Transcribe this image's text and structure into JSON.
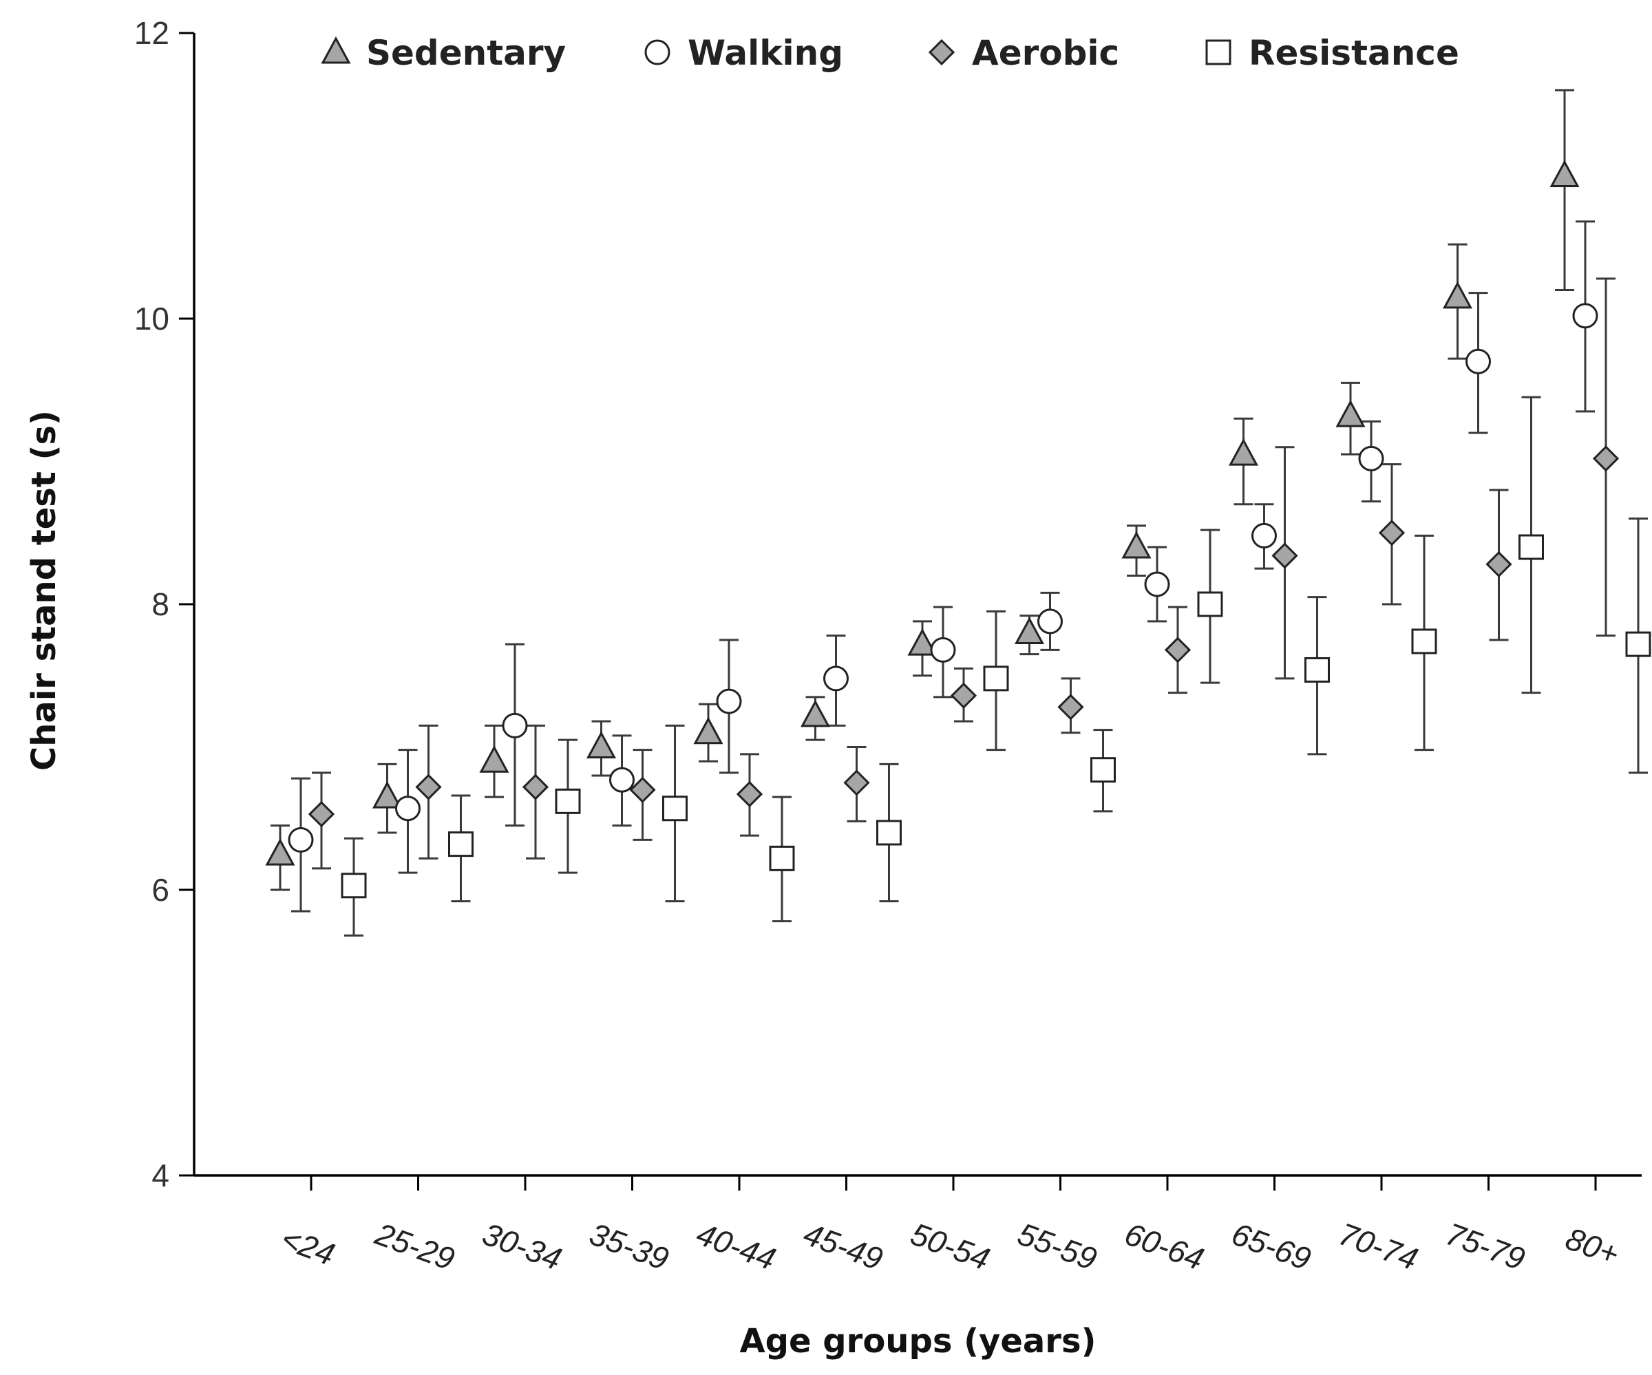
{
  "chart_data": {
    "type": "scatter",
    "xlabel": "Age groups (years)",
    "ylabel": "Chair stand test (s)",
    "ylim": [
      4,
      12
    ],
    "yticks": [
      4,
      6,
      8,
      10,
      12
    ],
    "legend_position": "top",
    "categories": [
      "<24",
      "25-29",
      "30-34",
      "35-39",
      "40-44",
      "45-49",
      "50-54",
      "55-59",
      "60-64",
      "65-69",
      "70-74",
      "75-79",
      "80+"
    ],
    "series": [
      {
        "name": "Sedentary",
        "marker": "triangle",
        "color": "#a6a6a6",
        "values": [
          6.25,
          6.65,
          6.9,
          7.0,
          7.1,
          7.22,
          7.72,
          7.8,
          8.4,
          9.05,
          9.32,
          10.15,
          11.0
        ],
        "err_low": [
          6.0,
          6.4,
          6.65,
          6.8,
          6.9,
          7.05,
          7.5,
          7.65,
          8.2,
          8.7,
          9.05,
          9.72,
          10.2
        ],
        "err_high": [
          6.45,
          6.88,
          7.15,
          7.18,
          7.3,
          7.35,
          7.88,
          7.92,
          8.55,
          9.3,
          9.55,
          10.52,
          11.6
        ]
      },
      {
        "name": "Walking",
        "marker": "circle",
        "color": "#ffffff",
        "values": [
          6.35,
          6.57,
          7.15,
          6.77,
          7.32,
          7.48,
          7.68,
          7.88,
          8.14,
          8.48,
          9.02,
          9.7,
          10.02
        ],
        "err_low": [
          5.85,
          6.12,
          6.45,
          6.45,
          6.82,
          7.15,
          7.35,
          7.68,
          7.88,
          8.25,
          8.72,
          9.2,
          9.35
        ],
        "err_high": [
          6.78,
          6.98,
          7.72,
          7.08,
          7.75,
          7.78,
          7.98,
          8.08,
          8.4,
          8.7,
          9.28,
          10.18,
          10.68
        ]
      },
      {
        "name": "Aerobic",
        "marker": "diamond",
        "color": "#a6a6a6",
        "values": [
          6.53,
          6.72,
          6.72,
          6.7,
          6.67,
          6.75,
          7.36,
          7.28,
          7.68,
          8.34,
          8.5,
          8.28,
          9.02
        ],
        "err_low": [
          6.15,
          6.22,
          6.22,
          6.35,
          6.38,
          6.48,
          7.18,
          7.1,
          7.38,
          7.48,
          8.0,
          7.75,
          7.78
        ],
        "err_high": [
          6.82,
          7.15,
          7.15,
          6.98,
          6.95,
          7.0,
          7.55,
          7.48,
          7.98,
          9.1,
          8.98,
          8.8,
          10.28
        ]
      },
      {
        "name": "Resistance",
        "marker": "square",
        "color": "#ffffff",
        "values": [
          6.03,
          6.32,
          6.62,
          6.57,
          6.22,
          6.4,
          7.48,
          6.84,
          8.0,
          7.54,
          7.74,
          8.4,
          7.72
        ],
        "err_low": [
          5.68,
          5.92,
          6.12,
          5.92,
          5.78,
          5.92,
          6.98,
          6.55,
          7.45,
          6.95,
          6.98,
          7.38,
          6.82
        ],
        "err_high": [
          6.36,
          6.66,
          7.05,
          7.15,
          6.65,
          6.88,
          7.95,
          7.12,
          8.52,
          8.05,
          8.48,
          9.45,
          8.6
        ]
      }
    ]
  }
}
